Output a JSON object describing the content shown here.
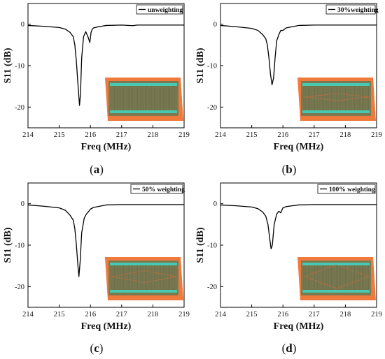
{
  "figure": {
    "panels": [
      {
        "caption_letter": "a",
        "legend": "unweighting",
        "inset": {
          "weighting": 0
        }
      },
      {
        "caption_letter": "b",
        "legend": "30%weighting",
        "inset": {
          "weighting": 0.3
        }
      },
      {
        "caption_letter": "c",
        "legend": "50% weighting",
        "inset": {
          "weighting": 0.5
        }
      },
      {
        "caption_letter": "d",
        "legend": "100% weighting",
        "inset": {
          "weighting": 1.0
        }
      }
    ]
  },
  "chart_data": [
    {
      "type": "line",
      "xlabel": "Freq (MHz)",
      "ylabel": "S11 (dB)",
      "xlim": [
        214,
        219
      ],
      "ylim": [
        -25,
        5
      ],
      "xticks": [
        214,
        215,
        216,
        217,
        218,
        219
      ],
      "yticks": [
        0,
        -10,
        -20
      ],
      "series": [
        {
          "name": "unweighting",
          "x": [
            214.0,
            214.5,
            215.0,
            215.2,
            215.35,
            215.45,
            215.5,
            215.55,
            215.6,
            215.65,
            215.68,
            215.72,
            215.78,
            215.85,
            215.92,
            215.98,
            216.02,
            216.06,
            216.1,
            216.2,
            216.35,
            216.5,
            217.0,
            217.35,
            217.5,
            218.0,
            218.5,
            219.0
          ],
          "y": [
            -0.3,
            -0.5,
            -0.8,
            -1.2,
            -2.0,
            -3.0,
            -5.0,
            -9.0,
            -14.5,
            -19.6,
            -17.0,
            -8.0,
            -3.0,
            -1.8,
            -3.0,
            -4.4,
            -2.0,
            -1.2,
            -0.9,
            -0.7,
            -0.5,
            -0.3,
            -0.2,
            -0.35,
            -0.2,
            -0.2,
            -0.2,
            -0.2
          ]
        }
      ]
    },
    {
      "type": "line",
      "xlabel": "Freq (MHz)",
      "ylabel": "S11 (dB)",
      "xlim": [
        214,
        219
      ],
      "ylim": [
        -25,
        5
      ],
      "xticks": [
        214,
        215,
        216,
        217,
        218,
        219
      ],
      "yticks": [
        0,
        -10,
        -20
      ],
      "series": [
        {
          "name": "30%weighting",
          "x": [
            214.0,
            214.5,
            215.0,
            215.2,
            215.35,
            215.45,
            215.5,
            215.55,
            215.6,
            215.65,
            215.7,
            215.75,
            215.8,
            215.87,
            215.93,
            216.0,
            216.1,
            216.3,
            216.5,
            217.0,
            218.0,
            219.0
          ],
          "y": [
            -0.3,
            -0.6,
            -1.0,
            -1.5,
            -2.5,
            -3.5,
            -5.0,
            -8.0,
            -12.0,
            -14.6,
            -13.0,
            -8.0,
            -4.0,
            -2.5,
            -1.5,
            -1.5,
            -0.9,
            -0.6,
            -0.3,
            -0.2,
            -0.2,
            -0.2
          ]
        }
      ]
    },
    {
      "type": "line",
      "xlabel": "Freq (MHz)",
      "ylabel": "S11 (dB)",
      "xlim": [
        214,
        219
      ],
      "ylim": [
        -25,
        5
      ],
      "xticks": [
        214,
        215,
        216,
        217,
        218,
        219
      ],
      "yticks": [
        0,
        -10,
        -20
      ],
      "series": [
        {
          "name": "50% weighting",
          "x": [
            214.0,
            214.5,
            215.0,
            215.2,
            215.35,
            215.45,
            215.5,
            215.55,
            215.6,
            215.63,
            215.67,
            215.72,
            215.8,
            215.87,
            215.93,
            216.0,
            216.1,
            216.3,
            216.5,
            217.0,
            218.0,
            219.0
          ],
          "y": [
            -0.3,
            -0.6,
            -1.0,
            -1.6,
            -2.8,
            -4.0,
            -6.0,
            -10.0,
            -15.0,
            -17.6,
            -14.0,
            -7.0,
            -3.5,
            -2.5,
            -2.0,
            -1.3,
            -0.9,
            -0.6,
            -0.3,
            -0.2,
            -0.2,
            -0.2
          ]
        }
      ]
    },
    {
      "type": "line",
      "xlabel": "Freq (MHz)",
      "ylabel": "S11 (dB)",
      "xlim": [
        214,
        219
      ],
      "ylim": [
        -25,
        5
      ],
      "xticks": [
        214,
        215,
        216,
        217,
        218,
        219
      ],
      "yticks": [
        0,
        -10,
        -20
      ],
      "series": [
        {
          "name": "100% weighting",
          "x": [
            214.0,
            214.5,
            215.0,
            215.2,
            215.35,
            215.45,
            215.52,
            215.57,
            215.62,
            215.66,
            215.72,
            215.8,
            215.87,
            215.93,
            216.0,
            216.1,
            216.3,
            216.5,
            217.0,
            218.0,
            219.0
          ],
          "y": [
            -0.3,
            -0.5,
            -0.8,
            -1.2,
            -2.0,
            -3.0,
            -5.0,
            -8.0,
            -10.9,
            -10.0,
            -5.0,
            -2.5,
            -1.8,
            -2.2,
            -1.0,
            -0.7,
            -0.5,
            -0.3,
            -0.2,
            -0.2,
            -0.2
          ]
        }
      ]
    }
  ],
  "colors": {
    "line": "#000000",
    "substrate_top": "#7a7a52",
    "substrate_frame": "#f07a3c",
    "electrode": "#48c8b0",
    "weighting_outline": "#e06a3a"
  }
}
